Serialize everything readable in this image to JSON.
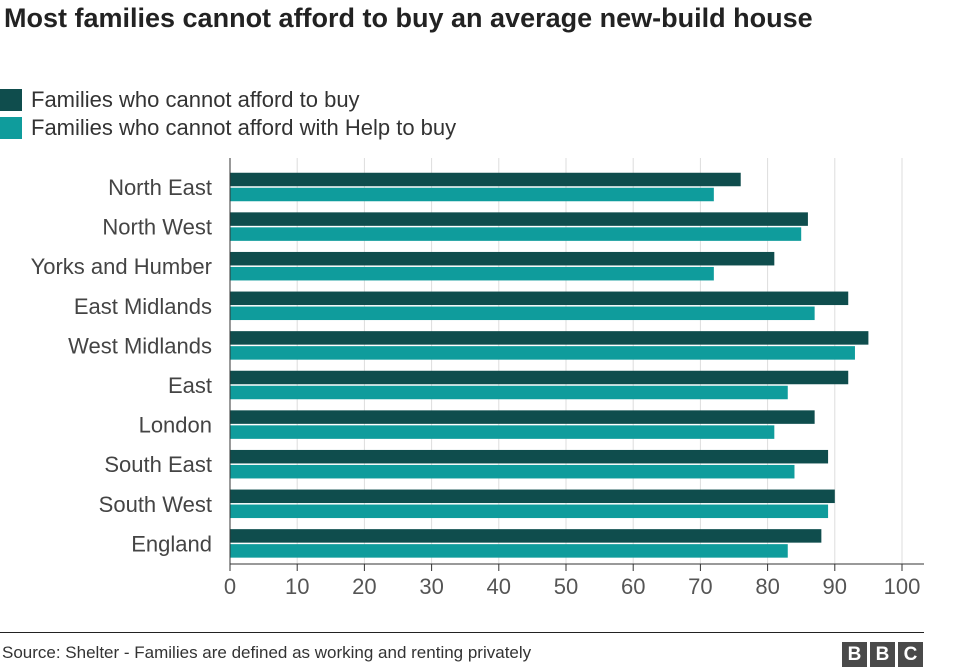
{
  "chart_data": {
    "type": "bar",
    "orientation": "horizontal",
    "title": "Most families cannot afford to buy an average new-build house",
    "categories": [
      "North East",
      "North West",
      "Yorks and Humber",
      "East Midlands",
      "West Midlands",
      "East",
      "London",
      "South East",
      "South West",
      "England"
    ],
    "series": [
      {
        "name": "Families who cannot afford to buy",
        "color": "#0f4d4d",
        "values": [
          76,
          86,
          81,
          92,
          95,
          92,
          87,
          89,
          90,
          88
        ]
      },
      {
        "name": "Families who cannot afford with Help to buy",
        "color": "#0f9c9c",
        "values": [
          72,
          85,
          72,
          87,
          93,
          83,
          81,
          84,
          89,
          83
        ]
      }
    ],
    "xlim": [
      0,
      100
    ],
    "xticks": [
      "0",
      "10",
      "20",
      "30",
      "40",
      "50",
      "60",
      "70",
      "80",
      "90",
      "100"
    ],
    "grid": true,
    "legend_position": "top-left"
  },
  "footer": {
    "source": "Source: Shelter - Families are defined as working and renting privately",
    "logo": [
      "B",
      "B",
      "C"
    ]
  }
}
